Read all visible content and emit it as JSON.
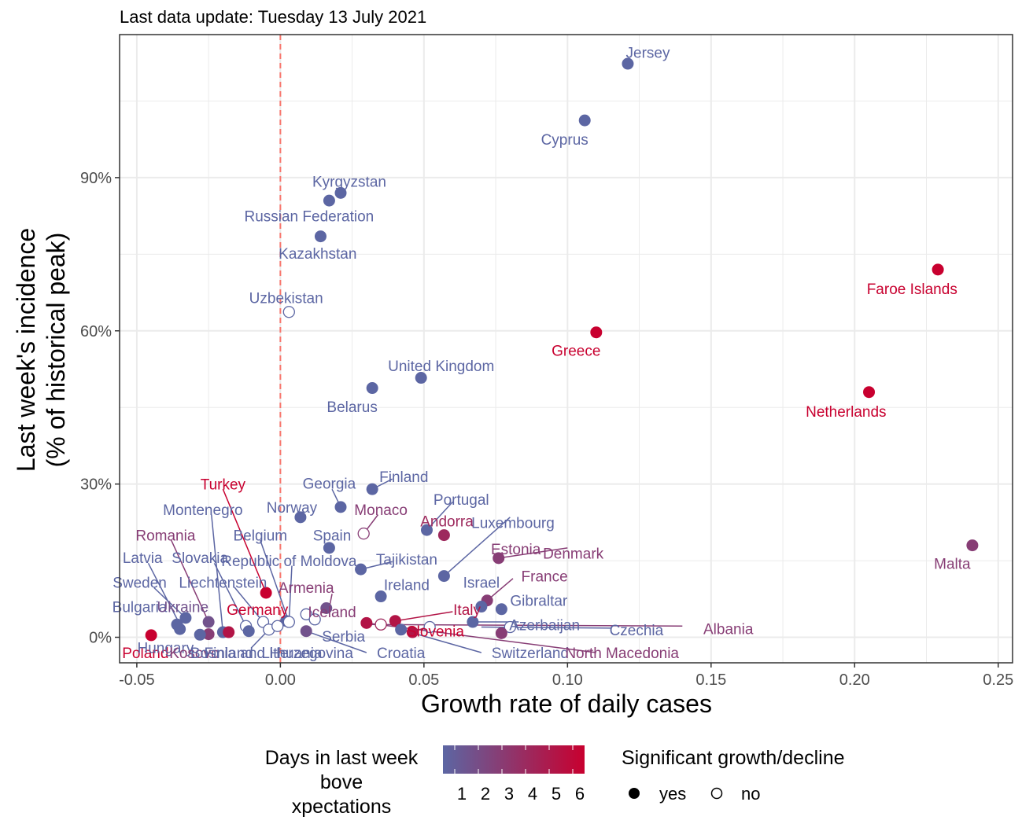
{
  "subtitle": "Last data update: Tuesday 13 July 2021",
  "colors": {
    "low": "#5c66a3",
    "high": "#c8002f",
    "ref_line": "#f8766d",
    "grid": "#ebebeb",
    "panel_border": "#333333"
  },
  "chart_data": {
    "type": "scatter",
    "title": "",
    "xlabel": "Growth rate of daily cases",
    "ylabel": "Last week's incidence\n(% of historical peak)",
    "xlim": [
      -0.056,
      0.255
    ],
    "ylim": [
      -0.05,
      1.18
    ],
    "x_ticks": [
      -0.05,
      0,
      0.05,
      0.1,
      0.15,
      0.2,
      0.25
    ],
    "x_tick_labels": [
      "-0.05",
      "0.00",
      "0.05",
      "0.10",
      "0.15",
      "0.20",
      "0.25"
    ],
    "y_ticks": [
      0,
      0.3,
      0.6,
      0.9
    ],
    "y_tick_labels": [
      "0%",
      "30%",
      "60%",
      "90%"
    ],
    "grid": true,
    "reference_line_x": 0,
    "legend_color_title": "Days in last week above expectations",
    "legend_color_ticks": [
      "1",
      "2",
      "3",
      "4",
      "5",
      "6"
    ],
    "legend_shape_title": "Significant growth/decline",
    "legend_shape_items": [
      "yes",
      "no"
    ],
    "points": [
      {
        "name": "Jersey",
        "x": 0.121,
        "y": 1.123,
        "days": 1,
        "sig": true
      },
      {
        "name": "Cyprus",
        "x": 0.106,
        "y": 1.012,
        "days": 1,
        "sig": true
      },
      {
        "name": "Kyrgyzstan",
        "x": 0.021,
        "y": 0.87,
        "days": 1,
        "sig": true
      },
      {
        "name": "Russian Federation",
        "x": 0.017,
        "y": 0.855,
        "days": 1,
        "sig": true
      },
      {
        "name": "Kazakhstan",
        "x": 0.014,
        "y": 0.785,
        "days": 1,
        "sig": true
      },
      {
        "name": "Faroe Islands",
        "x": 0.229,
        "y": 0.72,
        "days": 6,
        "sig": true
      },
      {
        "name": "Uzbekistan",
        "x": 0.003,
        "y": 0.637,
        "days": 1,
        "sig": false
      },
      {
        "name": "Greece",
        "x": 0.11,
        "y": 0.597,
        "days": 6,
        "sig": true
      },
      {
        "name": "United Kingdom",
        "x": 0.049,
        "y": 0.508,
        "days": 1,
        "sig": true
      },
      {
        "name": "Belarus",
        "x": 0.032,
        "y": 0.488,
        "days": 1,
        "sig": true
      },
      {
        "name": "Netherlands",
        "x": 0.205,
        "y": 0.48,
        "days": 6,
        "sig": true
      },
      {
        "name": "Finland",
        "x": 0.032,
        "y": 0.29,
        "days": 1,
        "sig": true
      },
      {
        "name": "Georgia",
        "x": 0.021,
        "y": 0.255,
        "days": 1,
        "sig": true
      },
      {
        "name": "Norway",
        "x": 0.007,
        "y": 0.235,
        "days": 1,
        "sig": true
      },
      {
        "name": "Monaco",
        "x": 0.029,
        "y": 0.203,
        "days": 3,
        "sig": false
      },
      {
        "name": "Portugal",
        "x": 0.051,
        "y": 0.21,
        "days": 1,
        "sig": true
      },
      {
        "name": "Andorra",
        "x": 0.057,
        "y": 0.2,
        "days": 4,
        "sig": true
      },
      {
        "name": "Malta",
        "x": 0.241,
        "y": 0.18,
        "days": 3,
        "sig": true
      },
      {
        "name": "Belgium",
        "x": 0.017,
        "y": 0.175,
        "days": 1,
        "sig": true
      },
      {
        "name": "Estonia",
        "x": 0.076,
        "y": 0.155,
        "days": 3,
        "sig": true
      },
      {
        "name": "Tajikistan",
        "x": 0.028,
        "y": 0.133,
        "days": 1,
        "sig": true
      },
      {
        "name": "Luxembourg",
        "x": 0.057,
        "y": 0.12,
        "days": 1,
        "sig": true
      },
      {
        "name": "Ireland",
        "x": 0.035,
        "y": 0.08,
        "days": 1,
        "sig": true
      },
      {
        "name": "Turkey",
        "x": -0.005,
        "y": 0.087,
        "days": 6,
        "sig": true
      },
      {
        "name": "France",
        "x": 0.072,
        "y": 0.072,
        "days": 3,
        "sig": true
      },
      {
        "name": "Armenia",
        "x": 0.016,
        "y": 0.057,
        "days": 2,
        "sig": true
      },
      {
        "name": "Gibraltar",
        "x": 0.077,
        "y": 0.055,
        "days": 1,
        "sig": true
      },
      {
        "name": "Israel",
        "x": 0.07,
        "y": 0.06,
        "days": 1,
        "sig": true
      },
      {
        "name": "Sweden",
        "x": -0.033,
        "y": 0.038,
        "days": 1,
        "sig": true
      },
      {
        "name": "Italy",
        "x": 0.04,
        "y": 0.032,
        "days": 5,
        "sig": true
      },
      {
        "name": "Ukraine",
        "x": -0.025,
        "y": 0.03,
        "days": 2,
        "sig": true
      },
      {
        "name": "Azerbaijan",
        "x": 0.067,
        "y": 0.03,
        "days": 1,
        "sig": true
      },
      {
        "name": "Iceland",
        "x": 0.03,
        "y": 0.028,
        "days": 5,
        "sig": true
      },
      {
        "name": "Germany",
        "x": 0.002,
        "y": 0.032,
        "days": 1,
        "sig": true
      },
      {
        "name": "Latvia",
        "x": -0.036,
        "y": 0.025,
        "days": 1,
        "sig": true
      },
      {
        "name": "Bulgaria",
        "x": -0.035,
        "y": 0.016,
        "days": 1,
        "sig": true
      },
      {
        "name": "Slovakia",
        "x": -0.012,
        "y": 0.022,
        "days": 1,
        "sig": false
      },
      {
        "name": "Liechtenstein",
        "x": -0.006,
        "y": 0.03,
        "days": 1,
        "sig": false
      },
      {
        "name": "Republic of Moldova",
        "x": 0.003,
        "y": 0.03,
        "days": 1,
        "sig": false
      },
      {
        "name": "Serbia",
        "x": 0.009,
        "y": 0.012,
        "days": 2,
        "sig": true
      },
      {
        "name": "Slovenia",
        "x": 0.046,
        "y": 0.01,
        "days": 5,
        "sig": true
      },
      {
        "name": "Croatia",
        "x": 0.042,
        "y": 0.015,
        "days": 1,
        "sig": true
      },
      {
        "name": "Czechia",
        "x": 0.08,
        "y": 0.02,
        "days": 1,
        "sig": false
      },
      {
        "name": "Albania",
        "x": 0.035,
        "y": 0.025,
        "days": 4,
        "sig": false
      },
      {
        "name": "Switzerland",
        "x": 0.052,
        "y": 0.02,
        "days": 1,
        "sig": false
      },
      {
        "name": "North Macedonia",
        "x": 0.077,
        "y": 0.008,
        "days": 3,
        "sig": true
      },
      {
        "name": "Montenegro",
        "x": -0.02,
        "y": 0.01,
        "days": 1,
        "sig": true
      },
      {
        "name": "Romania",
        "x": -0.025,
        "y": 0.006,
        "days": 3,
        "sig": true
      },
      {
        "name": "Poland",
        "x": -0.045,
        "y": 0.004,
        "days": 6,
        "sig": true
      },
      {
        "name": "Hungary",
        "x": -0.028,
        "y": 0.005,
        "days": 1,
        "sig": true
      },
      {
        "name": "Kosovo",
        "x": -0.018,
        "y": 0.01,
        "days": 5,
        "sig": true
      },
      {
        "name": "Finland2",
        "x": -0.011,
        "y": 0.012,
        "days": 1,
        "sig": true
      },
      {
        "name": "Bosnia and Herzegovina",
        "x": -0.004,
        "y": 0.015,
        "days": 1,
        "sig": false
      },
      {
        "name": "Lithuania",
        "x": -0.001,
        "y": 0.022,
        "days": 1,
        "sig": false
      },
      {
        "name": "Spain",
        "x": 0.009,
        "y": 0.045,
        "days": 1,
        "sig": false
      },
      {
        "name": "Denmark",
        "x": 0.012,
        "y": 0.035,
        "days": 1,
        "sig": false
      }
    ],
    "labels": [
      {
        "text": "Jersey",
        "lx": 0.128,
        "ly": 1.145,
        "days": 1
      },
      {
        "text": "Cyprus",
        "lx": 0.099,
        "ly": 0.975,
        "days": 1
      },
      {
        "text": "Kyrgyzstan",
        "lx": 0.024,
        "ly": 0.893,
        "days": 1
      },
      {
        "text": "Russian Federation",
        "lx": 0.01,
        "ly": 0.825,
        "days": 1
      },
      {
        "text": "Kazakhstan",
        "lx": 0.013,
        "ly": 0.752,
        "days": 1
      },
      {
        "text": "Faroe Islands",
        "lx": 0.22,
        "ly": 0.683,
        "days": 6
      },
      {
        "text": "Uzbekistan",
        "lx": 0.002,
        "ly": 0.665,
        "days": 1
      },
      {
        "text": "Greece",
        "lx": 0.103,
        "ly": 0.562,
        "days": 6
      },
      {
        "text": "United Kingdom",
        "lx": 0.056,
        "ly": 0.532,
        "days": 1
      },
      {
        "text": "Belarus",
        "lx": 0.025,
        "ly": 0.452,
        "days": 1
      },
      {
        "text": "Netherlands",
        "lx": 0.197,
        "ly": 0.443,
        "days": 6
      },
      {
        "text": "Finland",
        "lx": 0.043,
        "ly": 0.315,
        "days": 1
      },
      {
        "text": "Georgia",
        "lx": 0.017,
        "ly": 0.302,
        "days": 1
      },
      {
        "text": "Norway",
        "lx": 0.004,
        "ly": 0.255,
        "days": 1
      },
      {
        "text": "Monaco",
        "lx": 0.035,
        "ly": 0.25,
        "days": 3
      },
      {
        "text": "Portugal",
        "lx": 0.063,
        "ly": 0.27,
        "days": 1
      },
      {
        "text": "Andorra",
        "lx": 0.058,
        "ly": 0.228,
        "days": 4
      },
      {
        "text": "Luxembourg",
        "lx": 0.081,
        "ly": 0.225,
        "days": 1
      },
      {
        "text": "Spain",
        "lx": 0.018,
        "ly": 0.2,
        "days": 1
      },
      {
        "text": "Malta",
        "lx": 0.234,
        "ly": 0.145,
        "days": 3
      },
      {
        "text": "Belgium",
        "lx": -0.007,
        "ly": 0.2,
        "days": 1
      },
      {
        "text": "Montenegro",
        "lx": -0.027,
        "ly": 0.25,
        "days": 1
      },
      {
        "text": "Turkey",
        "lx": -0.02,
        "ly": 0.3,
        "days": 6
      },
      {
        "text": "Romania",
        "lx": -0.04,
        "ly": 0.2,
        "days": 3
      },
      {
        "text": "Estonia",
        "lx": 0.082,
        "ly": 0.173,
        "days": 3
      },
      {
        "text": "Denmark",
        "lx": 0.102,
        "ly": 0.165,
        "days": 3
      },
      {
        "text": "Latvia",
        "lx": -0.048,
        "ly": 0.156,
        "days": 1
      },
      {
        "text": "Slovakia",
        "lx": -0.028,
        "ly": 0.156,
        "days": 1
      },
      {
        "text": "Republic of Moldova",
        "lx": 0.003,
        "ly": 0.15,
        "days": 1
      },
      {
        "text": "Tajikistan",
        "lx": 0.044,
        "ly": 0.153,
        "days": 1
      },
      {
        "text": "France",
        "lx": 0.092,
        "ly": 0.12,
        "days": 3
      },
      {
        "text": "Sweden",
        "lx": -0.049,
        "ly": 0.108,
        "days": 1
      },
      {
        "text": "Liechtenstein",
        "lx": -0.02,
        "ly": 0.108,
        "days": 1
      },
      {
        "text": "Armenia",
        "lx": 0.009,
        "ly": 0.098,
        "days": 3
      },
      {
        "text": "Ireland",
        "lx": 0.044,
        "ly": 0.103,
        "days": 1
      },
      {
        "text": "Israel",
        "lx": 0.07,
        "ly": 0.108,
        "days": 1
      },
      {
        "text": "Gibraltar",
        "lx": 0.09,
        "ly": 0.072,
        "days": 1
      },
      {
        "text": "Bulgaria",
        "lx": -0.049,
        "ly": 0.06,
        "days": 1
      },
      {
        "text": "Ukraine",
        "lx": -0.034,
        "ly": 0.06,
        "days": 2
      },
      {
        "text": "Germany",
        "lx": -0.008,
        "ly": 0.055,
        "days": 6
      },
      {
        "text": "Iceland",
        "lx": 0.018,
        "ly": 0.05,
        "days": 3
      },
      {
        "text": "Italy",
        "lx": 0.065,
        "ly": 0.055,
        "days": 5
      },
      {
        "text": "Azerbaijan",
        "lx": 0.092,
        "ly": 0.025,
        "days": 1
      },
      {
        "text": "Czechia",
        "lx": 0.124,
        "ly": 0.015,
        "days": 1
      },
      {
        "text": "Albania",
        "lx": 0.156,
        "ly": 0.017,
        "days": 3
      },
      {
        "text": "Serbia",
        "lx": 0.022,
        "ly": 0.002,
        "days": 1
      },
      {
        "text": "Slovenia",
        "lx": 0.054,
        "ly": 0.012,
        "days": 6
      },
      {
        "text": "Croatia",
        "lx": 0.042,
        "ly": -0.03,
        "days": 1
      },
      {
        "text": "Switzerland",
        "lx": 0.087,
        "ly": -0.03,
        "days": 1
      },
      {
        "text": "North Macedonia",
        "lx": 0.119,
        "ly": -0.03,
        "days": 3
      },
      {
        "text": "Poland",
        "lx": -0.047,
        "ly": -0.03,
        "days": 6
      },
      {
        "text": "Hungary",
        "lx": -0.04,
        "ly": -0.02,
        "days": 1
      },
      {
        "text": "Kosovo",
        "lx": -0.03,
        "ly": -0.03,
        "days": 3
      },
      {
        "text": "Finland",
        "lx": -0.018,
        "ly": -0.03,
        "days": 1
      },
      {
        "text": "Bosnia and Herzegovina",
        "lx": -0.003,
        "ly": -0.03,
        "days": 1
      },
      {
        "text": "Lithuania",
        "lx": 0.004,
        "ly": -0.03,
        "days": 1
      }
    ],
    "leaders": [
      {
        "x1": 0.032,
        "y1": 0.29,
        "x2": 0.039,
        "y2": 0.31,
        "days": 1
      },
      {
        "x1": 0.021,
        "y1": 0.255,
        "x2": 0.018,
        "y2": 0.29,
        "days": 1
      },
      {
        "x1": 0.029,
        "y1": 0.203,
        "x2": 0.034,
        "y2": 0.24,
        "days": 3
      },
      {
        "x1": 0.051,
        "y1": 0.21,
        "x2": 0.06,
        "y2": 0.265,
        "days": 1
      },
      {
        "x1": 0.057,
        "y1": 0.12,
        "x2": 0.08,
        "y2": 0.235,
        "days": 1
      },
      {
        "x1": 0.028,
        "y1": 0.133,
        "x2": 0.039,
        "y2": 0.148,
        "days": 1
      },
      {
        "x1": 0.076,
        "y1": 0.155,
        "x2": 0.1,
        "y2": 0.175,
        "days": 3
      },
      {
        "x1": 0.072,
        "y1": 0.072,
        "x2": 0.081,
        "y2": 0.115,
        "days": 3
      },
      {
        "x1": 0.017,
        "y1": 0.057,
        "x2": 0.018,
        "y2": 0.085,
        "days": 3
      },
      {
        "x1": 0.04,
        "y1": 0.032,
        "x2": 0.06,
        "y2": 0.05,
        "days": 5
      },
      {
        "x1": 0.067,
        "y1": 0.03,
        "x2": 0.083,
        "y2": 0.03,
        "days": 1
      },
      {
        "x1": 0.07,
        "y1": 0.02,
        "x2": 0.115,
        "y2": 0.018,
        "days": 1
      },
      {
        "x1": 0.03,
        "y1": 0.025,
        "x2": 0.14,
        "y2": 0.022,
        "days": 3
      },
      {
        "x1": 0.046,
        "y1": 0.01,
        "x2": 0.05,
        "y2": 0.018,
        "days": 5
      },
      {
        "x1": 0.03,
        "y1": 0.028,
        "x2": 0.11,
        "y2": -0.03,
        "days": 3
      },
      {
        "x1": 0.042,
        "y1": 0.015,
        "x2": 0.07,
        "y2": -0.03,
        "days": 1
      },
      {
        "x1": 0.009,
        "y1": 0.012,
        "x2": 0.03,
        "y2": -0.03,
        "days": 1
      },
      {
        "x1": -0.005,
        "y1": 0.087,
        "x2": -0.02,
        "y2": 0.29,
        "days": 6
      },
      {
        "x1": 0.003,
        "y1": 0.03,
        "x2": -0.007,
        "y2": 0.19,
        "days": 1
      },
      {
        "x1": -0.02,
        "y1": 0.01,
        "x2": -0.024,
        "y2": 0.24,
        "days": 1
      },
      {
        "x1": -0.025,
        "y1": 0.03,
        "x2": -0.038,
        "y2": 0.19,
        "days": 3
      },
      {
        "x1": -0.035,
        "y1": 0.025,
        "x2": -0.046,
        "y2": 0.145,
        "days": 1
      },
      {
        "x1": -0.033,
        "y1": 0.038,
        "x2": -0.044,
        "y2": 0.097,
        "days": 1
      },
      {
        "x1": -0.012,
        "y1": 0.022,
        "x2": -0.023,
        "y2": 0.145,
        "days": 1
      },
      {
        "x1": -0.006,
        "y1": 0.03,
        "x2": -0.016,
        "y2": 0.098,
        "days": 1
      },
      {
        "x1": 0.003,
        "y1": 0.03,
        "x2": 0.004,
        "y2": 0.14,
        "days": 1
      },
      {
        "x1": -0.004,
        "y1": 0.015,
        "x2": -0.01,
        "y2": -0.02,
        "days": 1
      }
    ]
  }
}
